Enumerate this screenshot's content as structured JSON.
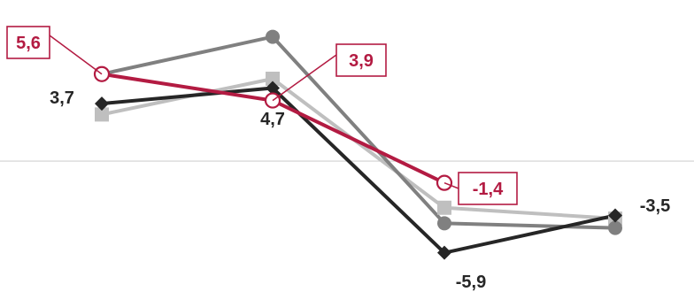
{
  "chart_data": {
    "type": "line",
    "categories": [
      "",
      "",
      "",
      ""
    ],
    "ylim": [
      -7.0,
      9.4
    ],
    "baseline": 0,
    "grid": false,
    "legend": "none",
    "series": [
      {
        "id": "dark-gray",
        "values": [
          5.6,
          8.0,
          -4.0,
          -4.3
        ],
        "color": "#808080",
        "marker": "circle",
        "emphasis": false
      },
      {
        "id": "light-gray",
        "values": [
          3.0,
          5.3,
          -3.0,
          -3.7
        ],
        "color": "#bfbfbf",
        "marker": "square",
        "emphasis": false
      },
      {
        "id": "black",
        "values": [
          3.7,
          4.7,
          -5.9,
          -3.5
        ],
        "color": "#262626",
        "marker": "diamond",
        "emphasis": false,
        "labels": [
          "3,7",
          "4,7",
          "-5,9",
          "-3,5"
        ]
      },
      {
        "id": "red",
        "values": [
          5.6,
          3.9,
          -1.4,
          null
        ],
        "color": "#b31b42",
        "marker": "open-circle",
        "emphasis": true,
        "labels": [
          "5,6",
          "3,9",
          "-1,4",
          null
        ]
      }
    ]
  }
}
